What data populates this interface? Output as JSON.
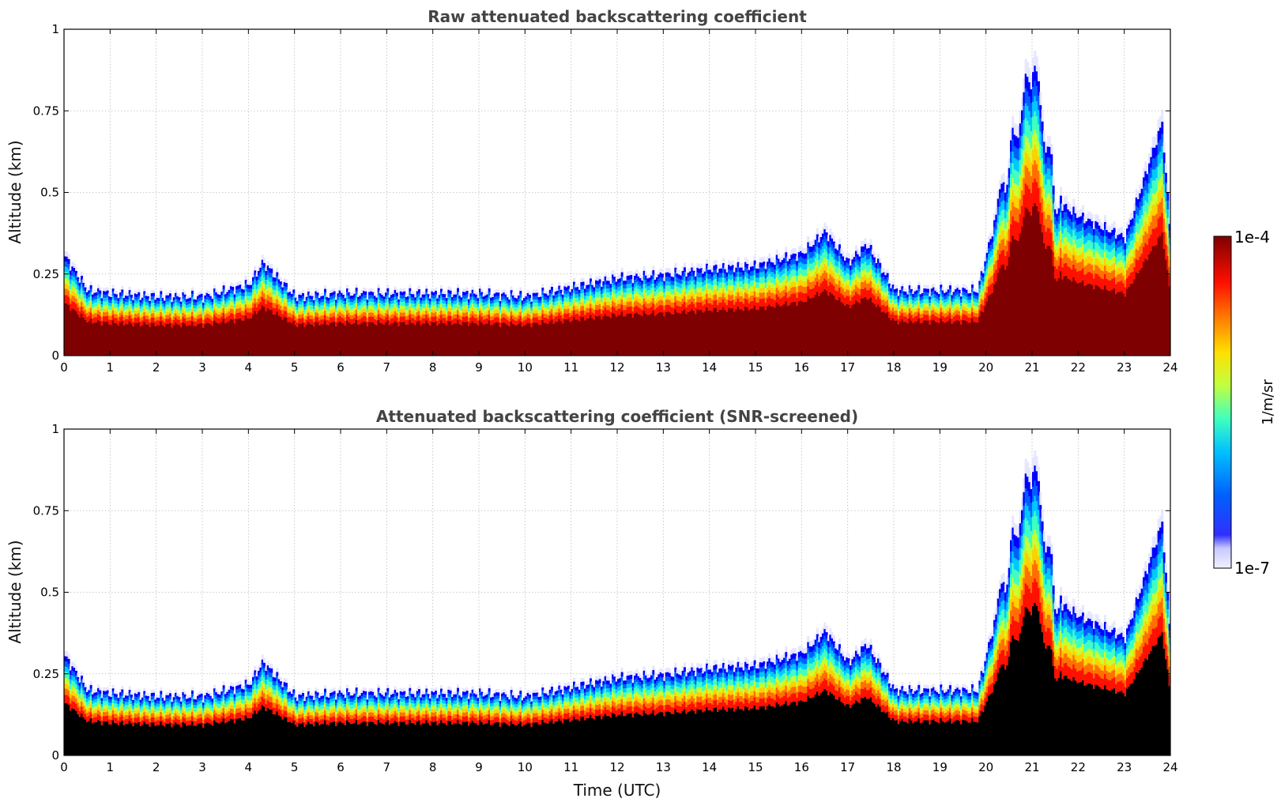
{
  "chart_data": [
    {
      "type": "heatmap",
      "title": "Raw attenuated backscattering coefficient",
      "xlabel": "",
      "ylabel": "Altitude (km)",
      "xlim": [
        0,
        24
      ],
      "ylim": [
        0,
        1
      ],
      "xticks": [
        "0",
        "1",
        "2",
        "3",
        "4",
        "5",
        "6",
        "7",
        "8",
        "9",
        "10",
        "11",
        "12",
        "13",
        "14",
        "15",
        "16",
        "17",
        "18",
        "19",
        "20",
        "21",
        "22",
        "23",
        "24"
      ],
      "yticks": [
        "0",
        "0.25",
        "0.5",
        "0.75",
        "1"
      ],
      "grid": true,
      "boundary_layer_top_km": {
        "time_utc": [
          0,
          0.5,
          1,
          2,
          3,
          4,
          4.3,
          5,
          6,
          7,
          8,
          9,
          10,
          11,
          12,
          13,
          14,
          15,
          16,
          16.5,
          17,
          17.4,
          18,
          19,
          19.8,
          20.2,
          21,
          21.5,
          22,
          23,
          23.8,
          24
        ],
        "top_altitude_km": [
          0.32,
          0.21,
          0.2,
          0.19,
          0.19,
          0.23,
          0.3,
          0.19,
          0.2,
          0.2,
          0.2,
          0.2,
          0.19,
          0.22,
          0.25,
          0.26,
          0.28,
          0.29,
          0.33,
          0.4,
          0.3,
          0.36,
          0.21,
          0.21,
          0.21,
          0.45,
          0.95,
          0.5,
          0.45,
          0.38,
          0.75,
          0.35
        ]
      },
      "colorbar": {
        "min_label": "1e-7",
        "max_label": "1e-4",
        "unit": "1/m/sr",
        "scale": "log",
        "colormap": "jet"
      }
    },
    {
      "type": "heatmap",
      "title": "Attenuated backscattering coefficient (SNR-screened)",
      "xlabel": "Time (UTC)",
      "ylabel": "Altitude (km)",
      "xlim": [
        0,
        24
      ],
      "ylim": [
        0,
        1
      ],
      "xticks": [
        "0",
        "1",
        "2",
        "3",
        "4",
        "5",
        "6",
        "7",
        "8",
        "9",
        "10",
        "11",
        "12",
        "13",
        "14",
        "15",
        "16",
        "17",
        "18",
        "19",
        "20",
        "21",
        "22",
        "23",
        "24"
      ],
      "yticks": [
        "0",
        "0.25",
        "0.5",
        "0.75",
        "1"
      ],
      "grid": true,
      "boundary_layer_top_km": {
        "time_utc": [
          0,
          0.5,
          1,
          2,
          3,
          4,
          4.3,
          5,
          6,
          7,
          8,
          9,
          10,
          11,
          12,
          13,
          14,
          15,
          16,
          16.5,
          17,
          17.4,
          18,
          19,
          19.8,
          20.2,
          21,
          21.5,
          22,
          23,
          23.8,
          24
        ],
        "top_altitude_km": [
          0.32,
          0.21,
          0.2,
          0.19,
          0.19,
          0.23,
          0.3,
          0.19,
          0.2,
          0.2,
          0.2,
          0.2,
          0.19,
          0.22,
          0.25,
          0.26,
          0.28,
          0.29,
          0.33,
          0.4,
          0.3,
          0.36,
          0.21,
          0.21,
          0.21,
          0.45,
          0.95,
          0.5,
          0.45,
          0.38,
          0.75,
          0.35
        ]
      },
      "masked_color": "#000000",
      "colorbar": {
        "min_label": "1e-7",
        "max_label": "1e-4",
        "unit": "1/m/sr",
        "scale": "log",
        "colormap": "jet"
      }
    }
  ],
  "colors": {
    "jet_stops": [
      "#00007f",
      "#0000ff",
      "#0080ff",
      "#00ffff",
      "#80ff80",
      "#ffff00",
      "#ff8000",
      "#ff0000",
      "#7f0000"
    ],
    "low_end": "#e8e8ff",
    "grid": "#bbbbbb"
  }
}
